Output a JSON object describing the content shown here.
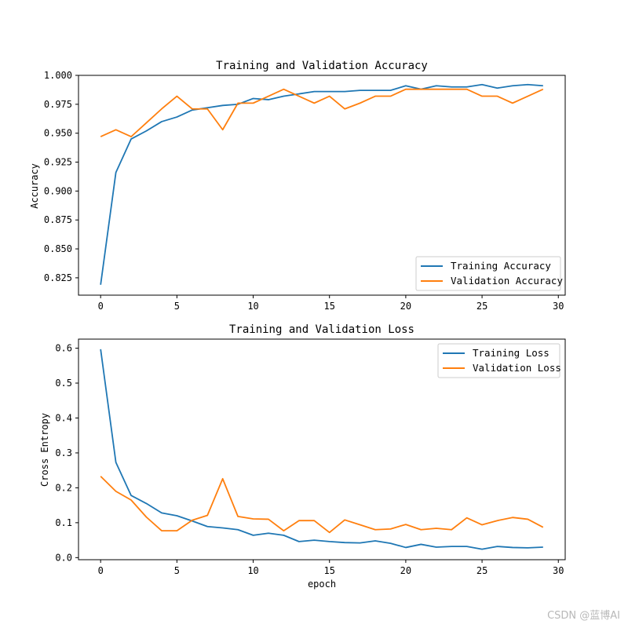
{
  "watermark": "CSDN @蓝博AI",
  "colors": {
    "training": "#1f77b4",
    "validation": "#ff7f0e"
  },
  "chart_data": [
    {
      "type": "line",
      "title": "Training and Validation Accuracy",
      "xlabel": "",
      "ylabel": "Accuracy",
      "xlim": [
        -1.45,
        30.45
      ],
      "ylim": [
        0.81,
        1.0
      ],
      "xticks": [
        0,
        5,
        10,
        15,
        20,
        25,
        30
      ],
      "yticks": [
        0.825,
        0.85,
        0.875,
        0.9,
        0.925,
        0.95,
        0.975,
        1.0
      ],
      "ytick_labels": [
        "0.825",
        "0.850",
        "0.875",
        "0.900",
        "0.925",
        "0.950",
        "0.975",
        "1.000"
      ],
      "legend_position": "lower-right",
      "x": [
        0,
        1,
        2,
        3,
        4,
        5,
        6,
        7,
        8,
        9,
        10,
        11,
        12,
        13,
        14,
        15,
        16,
        17,
        18,
        19,
        20,
        21,
        22,
        23,
        24,
        25,
        26,
        27,
        28,
        29
      ],
      "series": [
        {
          "name": "Training Accuracy",
          "color": "#1f77b4",
          "values": [
            0.819,
            0.916,
            0.945,
            0.952,
            0.96,
            0.964,
            0.97,
            0.972,
            0.974,
            0.975,
            0.98,
            0.979,
            0.982,
            0.984,
            0.986,
            0.986,
            0.986,
            0.987,
            0.987,
            0.987,
            0.991,
            0.988,
            0.991,
            0.99,
            0.99,
            0.992,
            0.989,
            0.991,
            0.992,
            0.991
          ]
        },
        {
          "name": "Validation Accuracy",
          "color": "#ff7f0e",
          "values": [
            0.947,
            0.953,
            0.947,
            0.959,
            0.971,
            0.982,
            0.971,
            0.971,
            0.953,
            0.976,
            0.976,
            0.982,
            0.988,
            0.982,
            0.976,
            0.982,
            0.971,
            0.976,
            0.982,
            0.982,
            0.988,
            0.988,
            0.988,
            0.988,
            0.988,
            0.982,
            0.982,
            0.976,
            0.982,
            0.988
          ]
        }
      ]
    },
    {
      "type": "line",
      "title": "Training and Validation Loss",
      "xlabel": "epoch",
      "ylabel": "Cross Entropy",
      "xlim": [
        -1.45,
        30.45
      ],
      "ylim": [
        -0.006,
        0.626
      ],
      "xticks": [
        0,
        5,
        10,
        15,
        20,
        25,
        30
      ],
      "yticks": [
        0.0,
        0.1,
        0.2,
        0.3,
        0.4,
        0.5,
        0.6
      ],
      "ytick_labels": [
        "0.0",
        "0.1",
        "0.2",
        "0.3",
        "0.4",
        "0.5",
        "0.6"
      ],
      "legend_position": "upper-right",
      "x": [
        0,
        1,
        2,
        3,
        4,
        5,
        6,
        7,
        8,
        9,
        10,
        11,
        12,
        13,
        14,
        15,
        16,
        17,
        18,
        19,
        20,
        21,
        22,
        23,
        24,
        25,
        26,
        27,
        28,
        29
      ],
      "series": [
        {
          "name": "Training Loss",
          "color": "#1f77b4",
          "values": [
            0.597,
            0.273,
            0.178,
            0.155,
            0.128,
            0.12,
            0.105,
            0.089,
            0.085,
            0.08,
            0.064,
            0.07,
            0.064,
            0.046,
            0.05,
            0.046,
            0.043,
            0.042,
            0.048,
            0.041,
            0.029,
            0.038,
            0.03,
            0.032,
            0.032,
            0.024,
            0.032,
            0.029,
            0.028,
            0.03
          ]
        },
        {
          "name": "Validation Loss",
          "color": "#ff7f0e",
          "values": [
            0.233,
            0.19,
            0.165,
            0.116,
            0.077,
            0.077,
            0.107,
            0.121,
            0.226,
            0.118,
            0.111,
            0.11,
            0.077,
            0.106,
            0.106,
            0.072,
            0.108,
            0.094,
            0.08,
            0.082,
            0.095,
            0.08,
            0.084,
            0.08,
            0.114,
            0.094,
            0.106,
            0.115,
            0.11,
            0.087
          ]
        }
      ]
    }
  ]
}
